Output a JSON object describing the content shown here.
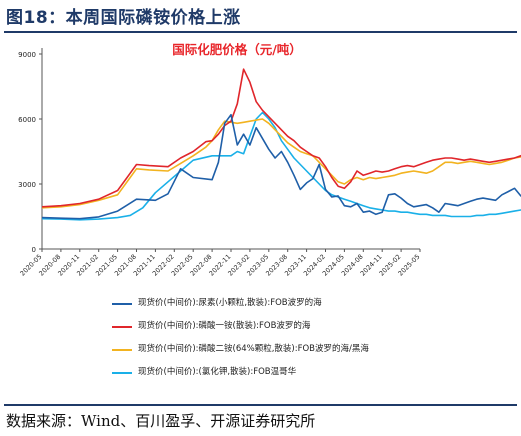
{
  "header": {
    "title": "图18：本周国际磷铵价格上涨"
  },
  "footer": {
    "source": "数据来源：Wind、百川盈孚、开源证券研究所"
  },
  "chart_data": {
    "type": "line",
    "title": "国际化肥价格（元/吨）",
    "title_color": "#e8262b",
    "xlabel": "",
    "ylabel": "",
    "x_ticks": [
      "2020-05",
      "2020-08",
      "2020-11",
      "2021-02",
      "2021-05",
      "2021-08",
      "2021-11",
      "2022-02",
      "2022-05",
      "2022-08",
      "2022-11",
      "2023-02",
      "2023-05",
      "2023-08",
      "2023-11",
      "2024-02",
      "2024-05",
      "2024-08",
      "2024-11",
      "2025-02",
      "2025-05"
    ],
    "y_ticks": [
      "0",
      "3000",
      "6000",
      "9000"
    ],
    "xlim": [
      "2020-05",
      "2025-05"
    ],
    "ylim": [
      0,
      9000
    ],
    "grid": false,
    "legend_position": "bottom",
    "series": [
      {
        "name": "现货价(中间价):尿素(小颗粒,散装):FOB波罗的海",
        "color": "#1f5fa8",
        "values": [
          [
            0,
            1450
          ],
          [
            3,
            1420
          ],
          [
            6,
            1400
          ],
          [
            9,
            1480
          ],
          [
            12,
            1750
          ],
          [
            15,
            2300
          ],
          [
            18,
            2250
          ],
          [
            20,
            2550
          ],
          [
            22,
            3700
          ],
          [
            24,
            3300
          ],
          [
            27,
            3200
          ],
          [
            28,
            4000
          ],
          [
            29,
            5800
          ],
          [
            30,
            6200
          ],
          [
            31,
            4800
          ],
          [
            32,
            5300
          ],
          [
            33,
            4800
          ],
          [
            34,
            5600
          ],
          [
            36,
            4600
          ],
          [
            37,
            4200
          ],
          [
            38,
            4500
          ],
          [
            39,
            4000
          ],
          [
            40,
            3400
          ],
          [
            41,
            2750
          ],
          [
            42,
            3050
          ],
          [
            43,
            3250
          ],
          [
            44,
            3900
          ],
          [
            45,
            2750
          ],
          [
            46,
            2400
          ],
          [
            47,
            2450
          ],
          [
            48,
            2000
          ],
          [
            49,
            1950
          ],
          [
            50,
            2100
          ],
          [
            51,
            1700
          ],
          [
            52,
            1750
          ],
          [
            53,
            1600
          ],
          [
            54,
            1700
          ],
          [
            55,
            2500
          ],
          [
            56,
            2550
          ],
          [
            57,
            2350
          ],
          [
            58,
            2100
          ],
          [
            59,
            1950
          ],
          [
            60,
            2000
          ],
          [
            61,
            2050
          ],
          [
            62,
            1900
          ],
          [
            63,
            1700
          ],
          [
            64,
            2100
          ],
          [
            65,
            2050
          ],
          [
            66,
            2000
          ],
          [
            67,
            2100
          ],
          [
            68,
            2200
          ],
          [
            69,
            2300
          ],
          [
            70,
            2350
          ],
          [
            71,
            2300
          ],
          [
            72,
            2250
          ],
          [
            73,
            2500
          ],
          [
            74,
            2650
          ],
          [
            75,
            2800
          ],
          [
            76,
            2450
          ],
          [
            77,
            2300
          ],
          [
            78,
            2550
          ],
          [
            79,
            2400
          ],
          [
            80,
            2450
          ]
        ]
      },
      {
        "name": "现货价(中间价):磷酸一铵(散装):FOB波罗的海",
        "color": "#e0262b",
        "values": [
          [
            0,
            1950
          ],
          [
            3,
            2000
          ],
          [
            6,
            2100
          ],
          [
            9,
            2300
          ],
          [
            12,
            2700
          ],
          [
            14,
            3500
          ],
          [
            15,
            3900
          ],
          [
            17,
            3850
          ],
          [
            20,
            3800
          ],
          [
            22,
            4200
          ],
          [
            24,
            4500
          ],
          [
            26,
            4950
          ],
          [
            27,
            5000
          ],
          [
            28,
            5300
          ],
          [
            29,
            5700
          ],
          [
            30,
            5900
          ],
          [
            31,
            6700
          ],
          [
            32,
            8300
          ],
          [
            33,
            7700
          ],
          [
            34,
            6800
          ],
          [
            35,
            6400
          ],
          [
            36,
            6100
          ],
          [
            37,
            5800
          ],
          [
            38,
            5500
          ],
          [
            39,
            5200
          ],
          [
            40,
            5000
          ],
          [
            41,
            4700
          ],
          [
            42,
            4500
          ],
          [
            43,
            4300
          ],
          [
            44,
            4200
          ],
          [
            45,
            3800
          ],
          [
            46,
            3300
          ],
          [
            47,
            2900
          ],
          [
            48,
            2800
          ],
          [
            49,
            3100
          ],
          [
            50,
            3600
          ],
          [
            51,
            3400
          ],
          [
            52,
            3500
          ],
          [
            53,
            3600
          ],
          [
            54,
            3550
          ],
          [
            55,
            3600
          ],
          [
            56,
            3700
          ],
          [
            57,
            3800
          ],
          [
            58,
            3850
          ],
          [
            59,
            3800
          ],
          [
            60,
            3900
          ],
          [
            61,
            4000
          ],
          [
            62,
            4100
          ],
          [
            63,
            4150
          ],
          [
            64,
            4200
          ],
          [
            65,
            4200
          ],
          [
            66,
            4150
          ],
          [
            67,
            4100
          ],
          [
            68,
            4150
          ],
          [
            69,
            4100
          ],
          [
            70,
            4050
          ],
          [
            71,
            4000
          ],
          [
            72,
            4050
          ],
          [
            73,
            4100
          ],
          [
            74,
            4150
          ],
          [
            75,
            4200
          ],
          [
            76,
            4300
          ],
          [
            77,
            4400
          ],
          [
            78,
            4500
          ],
          [
            79,
            4800
          ],
          [
            80,
            4700
          ]
        ]
      },
      {
        "name": "现货价(中间价):磷酸二铵(64%颗粒,散装):FOB波罗的海/黑海",
        "color": "#f2b320",
        "values": [
          [
            0,
            1900
          ],
          [
            3,
            1950
          ],
          [
            6,
            2050
          ],
          [
            9,
            2250
          ],
          [
            12,
            2500
          ],
          [
            14,
            3300
          ],
          [
            15,
            3700
          ],
          [
            17,
            3650
          ],
          [
            20,
            3600
          ],
          [
            22,
            3950
          ],
          [
            24,
            4300
          ],
          [
            26,
            4700
          ],
          [
            27,
            5000
          ],
          [
            28,
            5500
          ],
          [
            29,
            5900
          ],
          [
            30,
            5850
          ],
          [
            31,
            5800
          ],
          [
            32,
            5850
          ],
          [
            33,
            5900
          ],
          [
            34,
            5950
          ],
          [
            35,
            6000
          ],
          [
            36,
            5800
          ],
          [
            37,
            5500
          ],
          [
            38,
            5200
          ],
          [
            39,
            4900
          ],
          [
            40,
            4700
          ],
          [
            41,
            4500
          ],
          [
            42,
            4400
          ],
          [
            43,
            4300
          ],
          [
            44,
            4000
          ],
          [
            45,
            3700
          ],
          [
            46,
            3400
          ],
          [
            47,
            3100
          ],
          [
            48,
            3000
          ],
          [
            49,
            3200
          ],
          [
            50,
            3300
          ],
          [
            51,
            3200
          ],
          [
            52,
            3300
          ],
          [
            53,
            3250
          ],
          [
            54,
            3300
          ],
          [
            55,
            3350
          ],
          [
            56,
            3400
          ],
          [
            57,
            3500
          ],
          [
            58,
            3550
          ],
          [
            59,
            3600
          ],
          [
            60,
            3550
          ],
          [
            61,
            3500
          ],
          [
            62,
            3600
          ],
          [
            63,
            3800
          ],
          [
            64,
            4000
          ],
          [
            65,
            4000
          ],
          [
            66,
            3950
          ],
          [
            67,
            4000
          ],
          [
            68,
            4050
          ],
          [
            69,
            4000
          ],
          [
            70,
            3950
          ],
          [
            71,
            3900
          ],
          [
            72,
            3950
          ],
          [
            73,
            4000
          ],
          [
            74,
            4100
          ],
          [
            75,
            4200
          ],
          [
            76,
            4250
          ],
          [
            77,
            4300
          ],
          [
            78,
            4400
          ],
          [
            79,
            4600
          ],
          [
            80,
            4500
          ]
        ]
      },
      {
        "name": "现货价(中间价):(氯化钾,散装):FOB温哥华",
        "color": "#1ab0e8",
        "values": [
          [
            0,
            1400
          ],
          [
            3,
            1380
          ],
          [
            6,
            1350
          ],
          [
            9,
            1380
          ],
          [
            12,
            1450
          ],
          [
            14,
            1550
          ],
          [
            16,
            1900
          ],
          [
            18,
            2600
          ],
          [
            20,
            3100
          ],
          [
            22,
            3600
          ],
          [
            24,
            4100
          ],
          [
            27,
            4300
          ],
          [
            30,
            4300
          ],
          [
            31,
            4500
          ],
          [
            32,
            4400
          ],
          [
            33,
            5200
          ],
          [
            34,
            6000
          ],
          [
            35,
            6300
          ],
          [
            36,
            6000
          ],
          [
            37,
            5600
          ],
          [
            38,
            5000
          ],
          [
            39,
            4600
          ],
          [
            40,
            4200
          ],
          [
            41,
            3900
          ],
          [
            42,
            3600
          ],
          [
            43,
            3300
          ],
          [
            44,
            3000
          ],
          [
            45,
            2700
          ],
          [
            46,
            2500
          ],
          [
            47,
            2400
          ],
          [
            48,
            2300
          ],
          [
            49,
            2200
          ],
          [
            50,
            2100
          ],
          [
            51,
            2000
          ],
          [
            52,
            1900
          ],
          [
            53,
            1850
          ],
          [
            54,
            1800
          ],
          [
            55,
            1750
          ],
          [
            56,
            1750
          ],
          [
            57,
            1700
          ],
          [
            58,
            1700
          ],
          [
            59,
            1650
          ],
          [
            60,
            1600
          ],
          [
            61,
            1600
          ],
          [
            62,
            1550
          ],
          [
            63,
            1550
          ],
          [
            64,
            1550
          ],
          [
            65,
            1500
          ],
          [
            66,
            1500
          ],
          [
            67,
            1500
          ],
          [
            68,
            1500
          ],
          [
            69,
            1550
          ],
          [
            70,
            1550
          ],
          [
            71,
            1600
          ],
          [
            72,
            1600
          ],
          [
            73,
            1650
          ],
          [
            74,
            1700
          ],
          [
            75,
            1750
          ],
          [
            76,
            1800
          ],
          [
            77,
            1850
          ],
          [
            78,
            1900
          ],
          [
            79,
            1950
          ],
          [
            80,
            2000
          ]
        ]
      }
    ]
  }
}
